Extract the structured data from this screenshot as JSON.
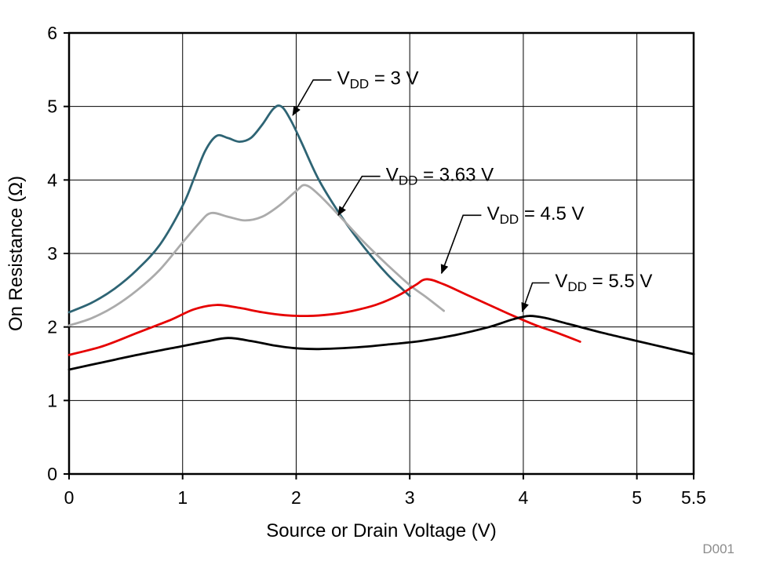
{
  "figure_id": "D001",
  "chart_data": {
    "type": "line",
    "title": "",
    "xlabel": "Source or Drain Voltage (V)",
    "ylabel": "On Resistance (Ω)",
    "xlim": [
      0,
      5.5
    ],
    "ylim": [
      0,
      6
    ],
    "xticks": [
      0,
      1,
      2,
      3,
      4,
      5,
      5.5
    ],
    "xtick_labels": [
      "0",
      "1",
      "2",
      "3",
      "4",
      "5",
      "5.5"
    ],
    "yticks": [
      0,
      1,
      2,
      3,
      4,
      5,
      6
    ],
    "ytick_labels": [
      "0",
      "1",
      "2",
      "3",
      "4",
      "5",
      "6"
    ],
    "grid": true,
    "frame_color": "#000000",
    "legend_position": "annotated-on-plot",
    "series": [
      {
        "name": "VDD = 3 V",
        "color": "#2e6474",
        "points": [
          [
            0,
            2.2
          ],
          [
            0.2,
            2.33
          ],
          [
            0.4,
            2.52
          ],
          [
            0.6,
            2.78
          ],
          [
            0.8,
            3.12
          ],
          [
            1.0,
            3.65
          ],
          [
            1.1,
            4.02
          ],
          [
            1.2,
            4.4
          ],
          [
            1.3,
            4.6
          ],
          [
            1.4,
            4.57
          ],
          [
            1.5,
            4.52
          ],
          [
            1.6,
            4.57
          ],
          [
            1.7,
            4.75
          ],
          [
            1.8,
            4.97
          ],
          [
            1.87,
            5.0
          ],
          [
            1.95,
            4.82
          ],
          [
            2.05,
            4.5
          ],
          [
            2.2,
            4.0
          ],
          [
            2.4,
            3.5
          ],
          [
            2.6,
            3.08
          ],
          [
            2.8,
            2.72
          ],
          [
            3.0,
            2.42
          ]
        ]
      },
      {
        "name": "VDD = 3.63 V",
        "color": "#ababab",
        "points": [
          [
            0,
            2.02
          ],
          [
            0.2,
            2.12
          ],
          [
            0.4,
            2.28
          ],
          [
            0.6,
            2.5
          ],
          [
            0.8,
            2.78
          ],
          [
            1.0,
            3.15
          ],
          [
            1.15,
            3.42
          ],
          [
            1.25,
            3.55
          ],
          [
            1.4,
            3.5
          ],
          [
            1.55,
            3.45
          ],
          [
            1.7,
            3.5
          ],
          [
            1.85,
            3.65
          ],
          [
            2.0,
            3.85
          ],
          [
            2.08,
            3.93
          ],
          [
            2.2,
            3.8
          ],
          [
            2.4,
            3.48
          ],
          [
            2.6,
            3.15
          ],
          [
            2.8,
            2.85
          ],
          [
            3.0,
            2.57
          ],
          [
            3.15,
            2.4
          ],
          [
            3.3,
            2.22
          ]
        ]
      },
      {
        "name": "VDD = 4.5 V",
        "color": "#e60000",
        "points": [
          [
            0,
            1.62
          ],
          [
            0.3,
            1.74
          ],
          [
            0.6,
            1.92
          ],
          [
            0.9,
            2.1
          ],
          [
            1.1,
            2.24
          ],
          [
            1.3,
            2.3
          ],
          [
            1.5,
            2.26
          ],
          [
            1.7,
            2.2
          ],
          [
            1.9,
            2.16
          ],
          [
            2.1,
            2.15
          ],
          [
            2.3,
            2.17
          ],
          [
            2.5,
            2.22
          ],
          [
            2.7,
            2.3
          ],
          [
            2.9,
            2.43
          ],
          [
            3.05,
            2.57
          ],
          [
            3.15,
            2.65
          ],
          [
            3.3,
            2.58
          ],
          [
            3.5,
            2.44
          ],
          [
            3.7,
            2.3
          ],
          [
            3.9,
            2.16
          ],
          [
            4.1,
            2.03
          ],
          [
            4.3,
            1.92
          ],
          [
            4.5,
            1.8
          ]
        ]
      },
      {
        "name": "VDD = 5.5 V",
        "color": "#000000",
        "points": [
          [
            0,
            1.42
          ],
          [
            0.3,
            1.52
          ],
          [
            0.6,
            1.62
          ],
          [
            0.9,
            1.71
          ],
          [
            1.2,
            1.8
          ],
          [
            1.4,
            1.85
          ],
          [
            1.6,
            1.81
          ],
          [
            1.8,
            1.75
          ],
          [
            2.0,
            1.71
          ],
          [
            2.2,
            1.7
          ],
          [
            2.5,
            1.72
          ],
          [
            2.8,
            1.76
          ],
          [
            3.1,
            1.81
          ],
          [
            3.4,
            1.89
          ],
          [
            3.7,
            2.0
          ],
          [
            3.9,
            2.1
          ],
          [
            4.05,
            2.15
          ],
          [
            4.2,
            2.12
          ],
          [
            4.4,
            2.04
          ],
          [
            4.7,
            1.92
          ],
          [
            5.0,
            1.81
          ],
          [
            5.25,
            1.72
          ],
          [
            5.5,
            1.63
          ]
        ]
      }
    ],
    "annotations": [
      {
        "var": "V",
        "sub": "DD",
        "rest": " = 3 V",
        "tx": 2.36,
        "ty": 5.3,
        "leader": [
          [
            2.31,
            5.36
          ],
          [
            2.15,
            5.36
          ],
          [
            1.97,
            4.88
          ]
        ]
      },
      {
        "var": "V",
        "sub": "DD",
        "rest": " = 3.63 V",
        "tx": 2.79,
        "ty": 3.99,
        "leader": [
          [
            2.74,
            4.05
          ],
          [
            2.58,
            4.05
          ],
          [
            2.37,
            3.52
          ]
        ]
      },
      {
        "var": "V",
        "sub": "DD",
        "rest": " = 4.5 V",
        "tx": 3.68,
        "ty": 3.46,
        "leader": [
          [
            3.63,
            3.52
          ],
          [
            3.47,
            3.52
          ],
          [
            3.28,
            2.73
          ]
        ]
      },
      {
        "var": "V",
        "sub": "DD",
        "rest": " = 5.5 V",
        "tx": 4.28,
        "ty": 2.54,
        "leader": [
          [
            4.23,
            2.6
          ],
          [
            4.08,
            2.6
          ],
          [
            3.99,
            2.21
          ]
        ]
      }
    ]
  }
}
